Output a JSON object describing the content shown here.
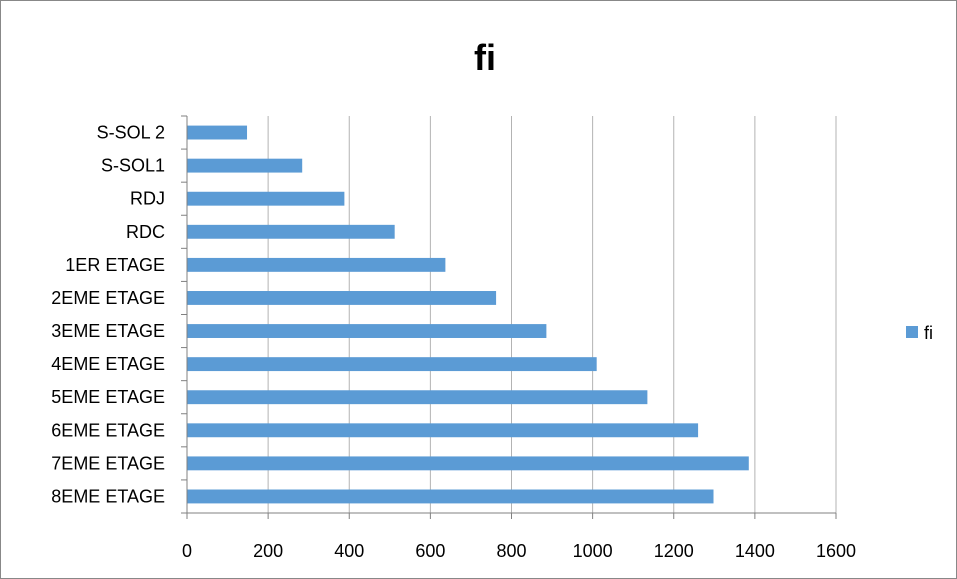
{
  "chart_data": {
    "type": "bar",
    "orientation": "horizontal",
    "title": "fi",
    "categories": [
      "S-SOL 2",
      "S-SOL1",
      "RDJ",
      "RDC",
      "1ER ETAGE",
      "2EME ETAGE",
      "3EME ETAGE",
      "4EME ETAGE",
      "5EME ETAGE",
      "6EME ETAGE",
      "7EME ETAGE",
      "8EME ETAGE"
    ],
    "series": [
      {
        "name": "fi",
        "color": "#5b9bd5",
        "values": [
          148,
          284,
          388,
          512,
          637,
          762,
          886,
          1010,
          1135,
          1260,
          1385,
          1298
        ]
      }
    ],
    "xlim": [
      0,
      1600
    ],
    "x_ticks": [
      0,
      200,
      400,
      600,
      800,
      1000,
      1200,
      1400,
      1600
    ],
    "x_tick_labels": [
      "0",
      "200",
      "400",
      "600",
      "800",
      "1000",
      "1200",
      "1400",
      "1600"
    ],
    "grid": "vertical",
    "legend_position": "right"
  }
}
